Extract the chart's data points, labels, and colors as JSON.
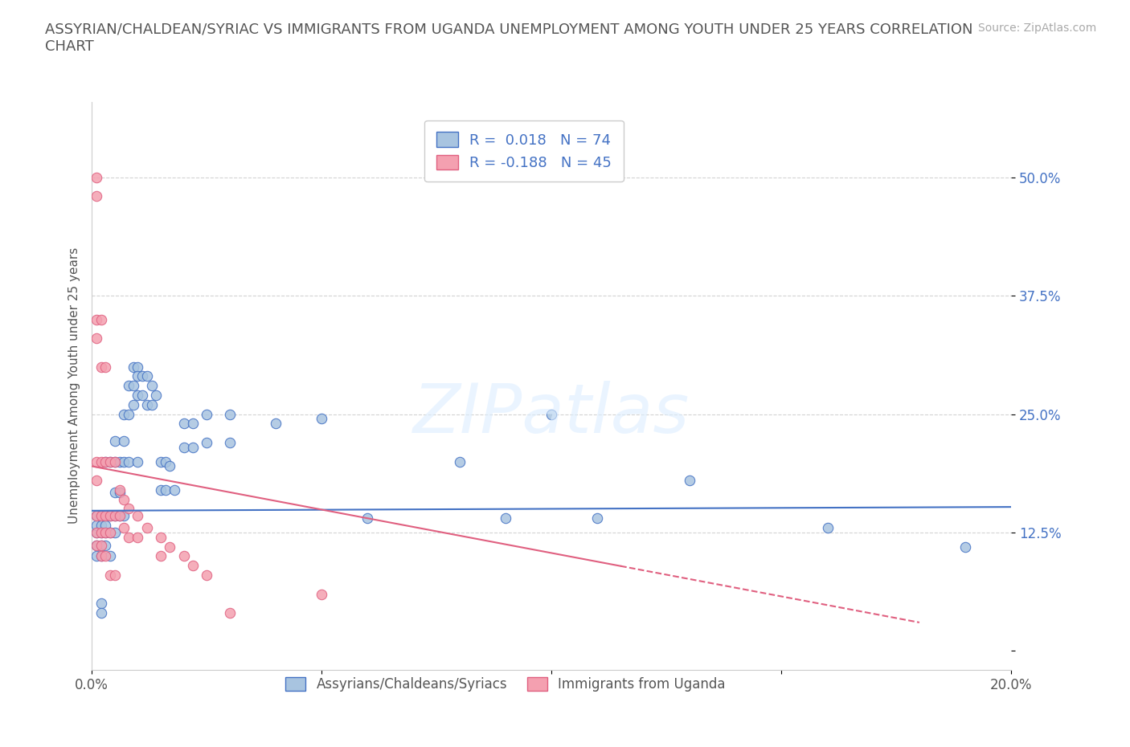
{
  "title": "ASSYRIAN/CHALDEAN/SYRIAC VS IMMIGRANTS FROM UGANDA UNEMPLOYMENT AMONG YOUTH UNDER 25 YEARS CORRELATION\nCHART",
  "source": "Source: ZipAtlas.com",
  "ylabel": "Unemployment Among Youth under 25 years",
  "xlim": [
    0.0,
    0.2
  ],
  "ylim": [
    -0.02,
    0.58
  ],
  "yticks": [
    0.0,
    0.125,
    0.25,
    0.375,
    0.5
  ],
  "ytick_labels": [
    "",
    "12.5%",
    "25.0%",
    "37.5%",
    "50.0%"
  ],
  "xticks": [
    0.0,
    0.05,
    0.1,
    0.15,
    0.2
  ],
  "xtick_labels": [
    "0.0%",
    "",
    "",
    "",
    "20.0%"
  ],
  "color_blue": "#a8c4e0",
  "color_pink": "#f4a0b0",
  "line_blue": "#4472c4",
  "line_pink": "#e06080",
  "blue_dots": [
    [
      0.001,
      0.143
    ],
    [
      0.001,
      0.125
    ],
    [
      0.001,
      0.111
    ],
    [
      0.001,
      0.133
    ],
    [
      0.001,
      0.1
    ],
    [
      0.002,
      0.143
    ],
    [
      0.002,
      0.125
    ],
    [
      0.002,
      0.111
    ],
    [
      0.002,
      0.133
    ],
    [
      0.002,
      0.1
    ],
    [
      0.003,
      0.2
    ],
    [
      0.003,
      0.143
    ],
    [
      0.003,
      0.125
    ],
    [
      0.003,
      0.111
    ],
    [
      0.003,
      0.133
    ],
    [
      0.004,
      0.2
    ],
    [
      0.004,
      0.143
    ],
    [
      0.004,
      0.125
    ],
    [
      0.004,
      0.1
    ],
    [
      0.005,
      0.222
    ],
    [
      0.005,
      0.2
    ],
    [
      0.005,
      0.167
    ],
    [
      0.005,
      0.143
    ],
    [
      0.005,
      0.125
    ],
    [
      0.006,
      0.2
    ],
    [
      0.006,
      0.167
    ],
    [
      0.006,
      0.143
    ],
    [
      0.007,
      0.25
    ],
    [
      0.007,
      0.222
    ],
    [
      0.007,
      0.2
    ],
    [
      0.007,
      0.143
    ],
    [
      0.008,
      0.28
    ],
    [
      0.008,
      0.25
    ],
    [
      0.008,
      0.2
    ],
    [
      0.009,
      0.3
    ],
    [
      0.009,
      0.28
    ],
    [
      0.009,
      0.26
    ],
    [
      0.01,
      0.3
    ],
    [
      0.01,
      0.29
    ],
    [
      0.01,
      0.27
    ],
    [
      0.01,
      0.2
    ],
    [
      0.011,
      0.29
    ],
    [
      0.011,
      0.27
    ],
    [
      0.012,
      0.29
    ],
    [
      0.012,
      0.26
    ],
    [
      0.013,
      0.28
    ],
    [
      0.013,
      0.26
    ],
    [
      0.014,
      0.27
    ],
    [
      0.015,
      0.2
    ],
    [
      0.015,
      0.17
    ],
    [
      0.016,
      0.2
    ],
    [
      0.016,
      0.17
    ],
    [
      0.017,
      0.195
    ],
    [
      0.018,
      0.17
    ],
    [
      0.02,
      0.24
    ],
    [
      0.02,
      0.215
    ],
    [
      0.022,
      0.24
    ],
    [
      0.022,
      0.215
    ],
    [
      0.025,
      0.25
    ],
    [
      0.025,
      0.22
    ],
    [
      0.03,
      0.25
    ],
    [
      0.03,
      0.22
    ],
    [
      0.04,
      0.24
    ],
    [
      0.05,
      0.245
    ],
    [
      0.06,
      0.14
    ],
    [
      0.08,
      0.2
    ],
    [
      0.09,
      0.14
    ],
    [
      0.1,
      0.25
    ],
    [
      0.11,
      0.14
    ],
    [
      0.13,
      0.18
    ],
    [
      0.16,
      0.13
    ],
    [
      0.19,
      0.11
    ],
    [
      0.002,
      0.05
    ],
    [
      0.002,
      0.04
    ]
  ],
  "pink_dots": [
    [
      0.001,
      0.5
    ],
    [
      0.001,
      0.48
    ],
    [
      0.001,
      0.35
    ],
    [
      0.001,
      0.33
    ],
    [
      0.001,
      0.2
    ],
    [
      0.001,
      0.18
    ],
    [
      0.001,
      0.143
    ],
    [
      0.001,
      0.125
    ],
    [
      0.001,
      0.111
    ],
    [
      0.002,
      0.35
    ],
    [
      0.002,
      0.3
    ],
    [
      0.002,
      0.2
    ],
    [
      0.002,
      0.143
    ],
    [
      0.002,
      0.125
    ],
    [
      0.002,
      0.111
    ],
    [
      0.002,
      0.1
    ],
    [
      0.003,
      0.3
    ],
    [
      0.003,
      0.2
    ],
    [
      0.003,
      0.143
    ],
    [
      0.003,
      0.125
    ],
    [
      0.003,
      0.1
    ],
    [
      0.004,
      0.2
    ],
    [
      0.004,
      0.143
    ],
    [
      0.004,
      0.125
    ],
    [
      0.004,
      0.08
    ],
    [
      0.005,
      0.2
    ],
    [
      0.005,
      0.143
    ],
    [
      0.005,
      0.08
    ],
    [
      0.006,
      0.17
    ],
    [
      0.006,
      0.143
    ],
    [
      0.007,
      0.16
    ],
    [
      0.007,
      0.13
    ],
    [
      0.008,
      0.15
    ],
    [
      0.008,
      0.12
    ],
    [
      0.01,
      0.143
    ],
    [
      0.01,
      0.12
    ],
    [
      0.012,
      0.13
    ],
    [
      0.015,
      0.12
    ],
    [
      0.015,
      0.1
    ],
    [
      0.017,
      0.11
    ],
    [
      0.02,
      0.1
    ],
    [
      0.022,
      0.09
    ],
    [
      0.025,
      0.08
    ],
    [
      0.03,
      0.04
    ],
    [
      0.05,
      0.06
    ]
  ],
  "blue_line": {
    "x_start": 0.0,
    "x_end": 0.2,
    "y_start": 0.148,
    "y_end": 0.152
  },
  "pink_line": {
    "x_start": 0.0,
    "x_end": 0.18,
    "y_start": 0.195,
    "y_end": 0.03
  },
  "pink_line_solid_end": 0.115
}
